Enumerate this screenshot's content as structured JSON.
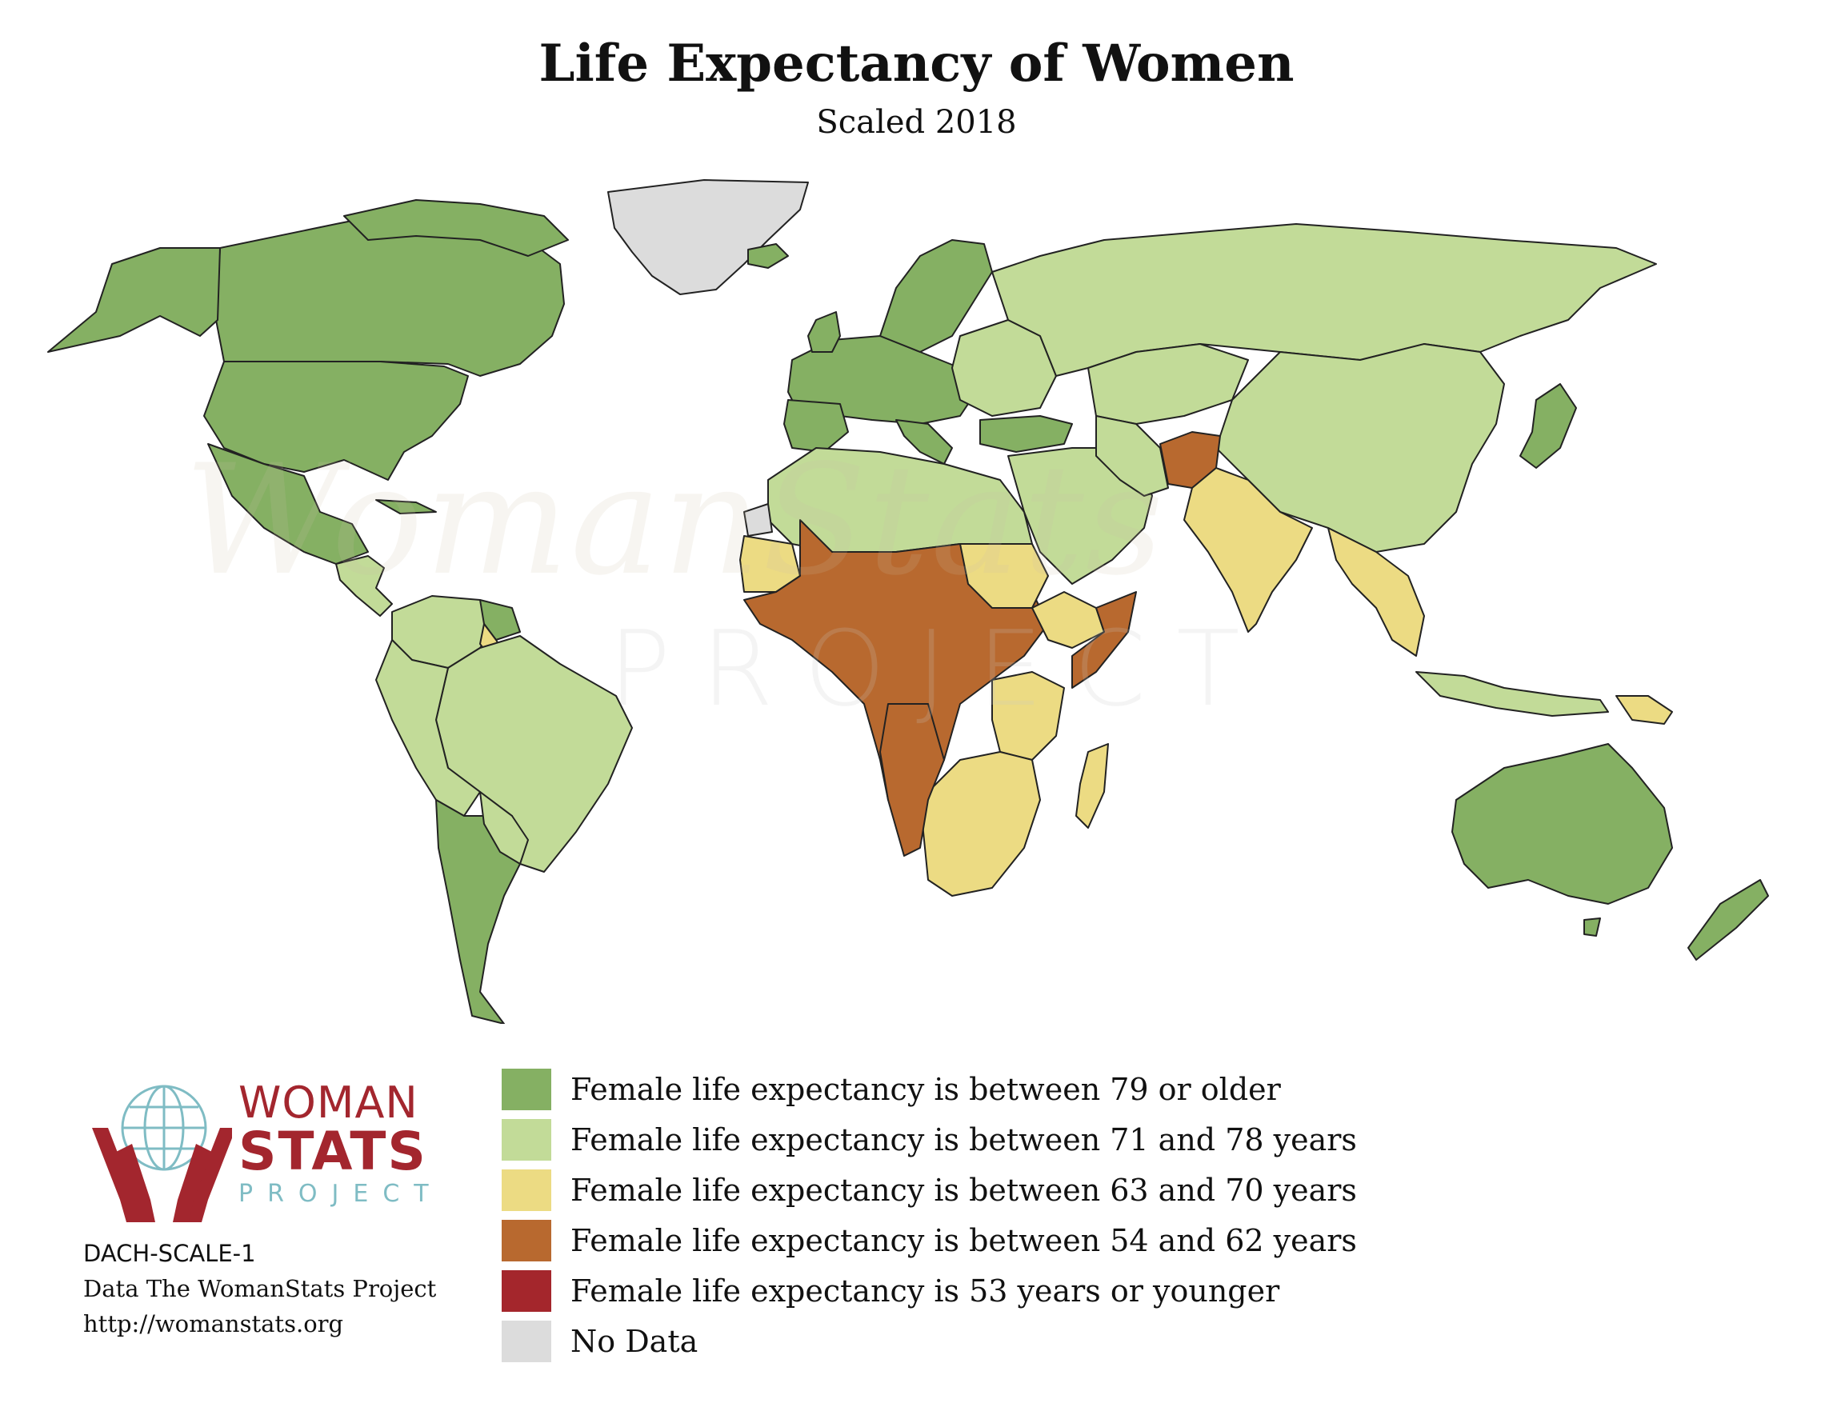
{
  "title": "Life Expectancy of Women",
  "subtitle": "Scaled 2018",
  "colors": {
    "very_high": "#85b063",
    "high": "#c2db98",
    "medium": "#ecdb83",
    "low": "#b8692f",
    "very_low": "#a4262c",
    "no_data": "#dcdcdc",
    "border": "#222222"
  },
  "legend": [
    {
      "label": "Female life expectancy is between 79 or older",
      "color": "#85b063"
    },
    {
      "label": "Female life expectancy is between 71 and 78 years",
      "color": "#c2db98"
    },
    {
      "label": "Female life expectancy is between 63 and 70 years",
      "color": "#ecdb83"
    },
    {
      "label": "Female life expectancy is between 54 and 62 years",
      "color": "#b8692f"
    },
    {
      "label": "Female life expectancy is 53 years or younger",
      "color": "#a4262c"
    },
    {
      "label": "No Data",
      "color": "#dcdcdc"
    }
  ],
  "logo": {
    "line1": "WOMAN",
    "line2": "STATS",
    "line3": "PROJECT"
  },
  "watermark": {
    "script": "WomanStats",
    "project": "PROJECT"
  },
  "credits": {
    "code": "DACH-SCALE-1",
    "source": "Data The WomanStats Project",
    "url": "http://womanstats.org"
  }
}
